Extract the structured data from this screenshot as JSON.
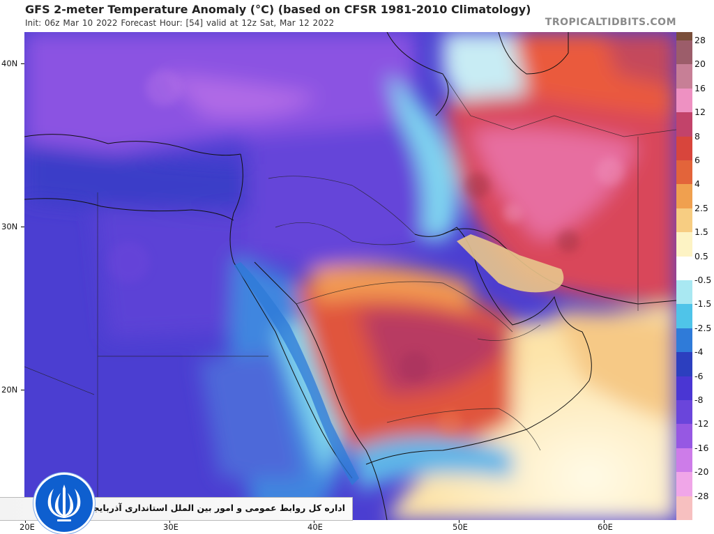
{
  "header": {
    "title": "GFS 2-meter Temperature Anomaly (°C) (based on CFSR 1981-2010 Climatology)",
    "subtitle": "Init: 06z Mar 10 2022   Forecast Hour: [54]   valid at 12z Sat, Mar 12 2022",
    "brand": "TROPICALTIDBITS.COM"
  },
  "map": {
    "lat_labels": [
      "40N",
      "30N",
      "20N"
    ],
    "lon_labels": [
      "20E",
      "30E",
      "40E",
      "50E",
      "60E"
    ],
    "regions": [
      {
        "name": "balkans-turkey",
        "anomaly_class": "strong-cold",
        "color": "#8a4fe0"
      },
      {
        "name": "north-africa-west",
        "anomaly_class": "cold",
        "color": "#4d3ed2"
      },
      {
        "name": "levant-mesopotamia",
        "anomaly_class": "cold",
        "color": "#6a45db"
      },
      {
        "name": "red-sea-coast",
        "anomaly_class": "cool",
        "color": "#3c8fe0"
      },
      {
        "name": "arabian-peninsula-interior",
        "anomaly_class": "warm",
        "color": "#d8453c"
      },
      {
        "name": "rub-al-khali",
        "anomaly_class": "very-warm",
        "color": "#b03560"
      },
      {
        "name": "iran-plateau",
        "anomaly_class": "warm",
        "color": "#d84a58"
      },
      {
        "name": "arabian-sea",
        "anomaly_class": "slightly-warm",
        "color": "#fde8b8"
      }
    ]
  },
  "colorbar": {
    "labels": [
      "28",
      "20",
      "16",
      "12",
      "8",
      "6",
      "4",
      "2.5",
      "1.5",
      "0.5",
      "-0.5",
      "-1.5",
      "-2.5",
      "-4",
      "-6",
      "-8",
      "-12",
      "-16",
      "-20",
      "-28"
    ],
    "colors": [
      "#7a4e3a",
      "#9c5d6a",
      "#c77f96",
      "#ee91c2",
      "#c2436a",
      "#d8453c",
      "#e3643a",
      "#f0a04f",
      "#f7cd82",
      "#fdf3c4",
      "#ffffff",
      "#a9e8f2",
      "#4fc4e9",
      "#2f7bd9",
      "#2c3fbf",
      "#4a36d3",
      "#6a45db",
      "#9658e3",
      "#cd7ce9",
      "#f0a6e8",
      "#f7c0c0"
    ]
  },
  "banner": {
    "text": "اداره کل روابط عمومی و امور بین الملل استانداری آذربایجان غربی",
    "emblem_icon": "iran-emblem-icon",
    "emblem_color": "#0e5fcf"
  }
}
